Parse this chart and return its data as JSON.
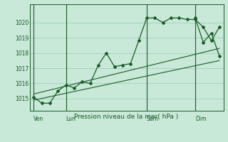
{
  "background_color": "#c8e8d8",
  "plot_bg_color": "#c8e8d8",
  "grid_color": "#99ccbb",
  "line_color": "#1a5c28",
  "title": "Pression niveau de la mer( hPa )",
  "ylim": [
    1014.2,
    1021.2
  ],
  "yticks": [
    1015,
    1016,
    1017,
    1018,
    1019,
    1020
  ],
  "xlim": [
    0,
    24
  ],
  "day_labels": [
    "Ven",
    "Lun",
    "Sam",
    "Dim"
  ],
  "day_positions": [
    0.5,
    4.5,
    14.5,
    20.5
  ],
  "day_vlines": [
    0.5,
    4.5,
    14.5,
    20.5
  ],
  "num_minor_x": 24,
  "series1_x": [
    0.5,
    1.5,
    2.5,
    3.5,
    4.5,
    5.5,
    6.5,
    7.5,
    8.5,
    9.5,
    10.5,
    11.5,
    12.5,
    13.5,
    14.5,
    15.5,
    16.5,
    17.5,
    18.5,
    19.5,
    20.5,
    21.5,
    22.5,
    23.5
  ],
  "series1_y": [
    1015.1,
    1014.7,
    1014.7,
    1015.5,
    1015.9,
    1015.7,
    1016.1,
    1016.0,
    1017.2,
    1018.0,
    1017.1,
    1017.2,
    1017.3,
    1018.8,
    1020.3,
    1020.3,
    1020.0,
    1020.3,
    1020.3,
    1020.2,
    1020.2,
    1019.7,
    1018.8,
    1019.7
  ],
  "series2_x": [
    20.5,
    21.5,
    22.5,
    23.5
  ],
  "series2_y": [
    1020.3,
    1018.7,
    1019.3,
    1017.8
  ],
  "trend1_x": [
    0.5,
    23.5
  ],
  "trend1_y": [
    1015.3,
    1018.3
  ],
  "trend2_x": [
    0.5,
    23.5
  ],
  "trend2_y": [
    1014.9,
    1017.5
  ],
  "figsize": [
    3.2,
    2.0
  ],
  "dpi": 100
}
